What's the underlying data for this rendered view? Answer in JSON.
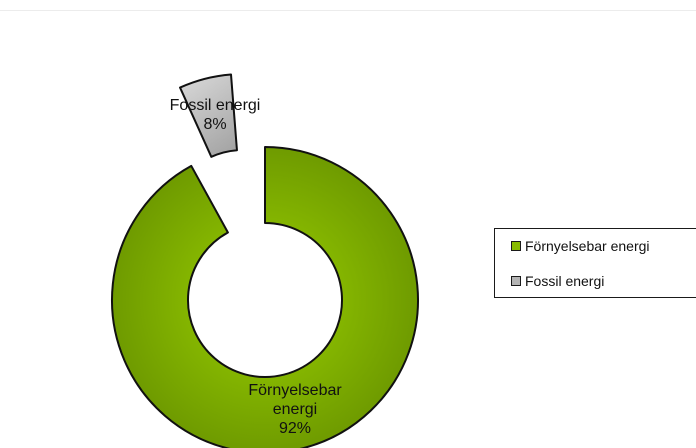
{
  "chart_data": {
    "type": "pie",
    "style": "exploded-doughnut",
    "title": "",
    "slices": [
      {
        "label": "Förnyelsebar energi",
        "value": 92,
        "value_label": "92%",
        "color": "#88bb00"
      },
      {
        "label": "Fossil energi",
        "value": 8,
        "value_label": "8%",
        "color": "#b4b4b4"
      }
    ],
    "data_labels": [
      {
        "lines": [
          "Förnyelsebar",
          "energi",
          "92%"
        ]
      },
      {
        "lines": [
          "Fossil energi",
          "8%"
        ]
      }
    ],
    "legend": {
      "position": "right",
      "entries": [
        "Förnyelsebar energi",
        "Fossil energi"
      ]
    }
  }
}
